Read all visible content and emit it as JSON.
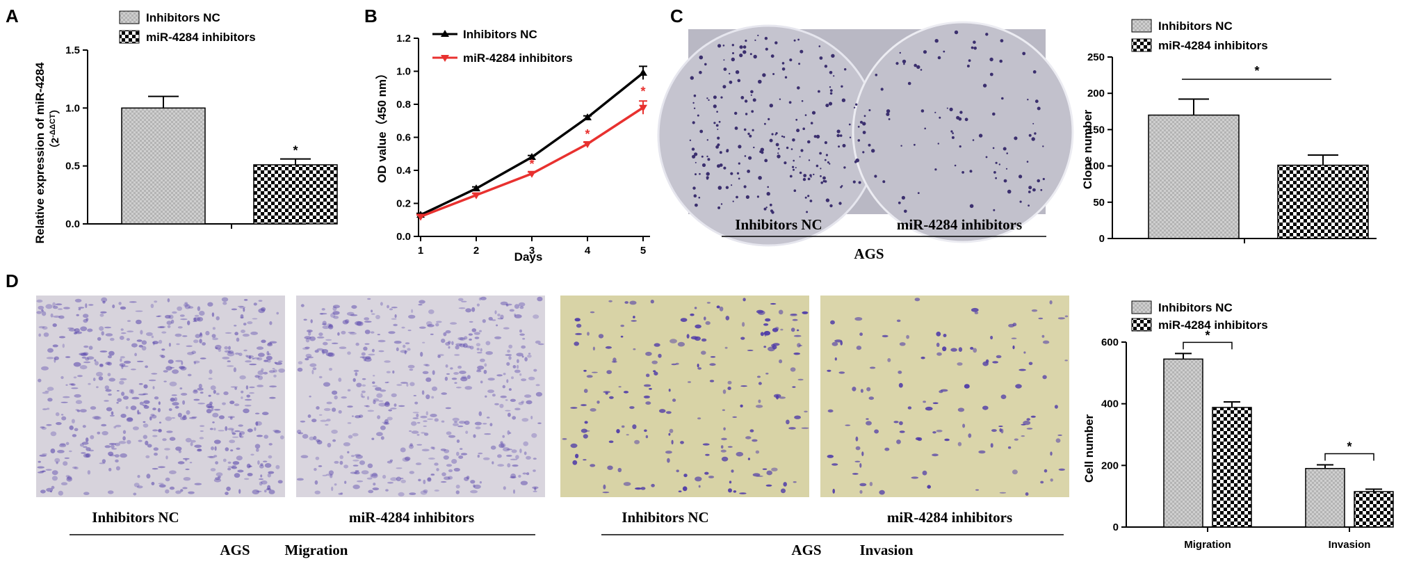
{
  "panels": {
    "A": "A",
    "B": "B",
    "C": "C",
    "D": "D"
  },
  "colors": {
    "axis": "#000000",
    "nc_fill": "#c8c8c8",
    "line_nc": "#000000",
    "line_inhib": "#e8312f",
    "dish_bg": "#b8b7c4",
    "colony": "#3b2f6e",
    "migration_bg": "#d7d3dc",
    "invasion_bg": "#d9d3a8",
    "stain": "#4e3aa8"
  },
  "images": {
    "colony": {
      "label_nc": "Inhibitors NC",
      "label_inhib": "miR-4284 inhibitors",
      "group": "AGS"
    },
    "migration": {
      "label_nc": "Inhibitors NC",
      "label_inhib": "miR-4284 inhibitors",
      "group": "AGS",
      "assay": "Migration"
    },
    "invasion": {
      "label_nc": "Inhibitors NC",
      "label_inhib": "miR-4284 inhibitors",
      "group": "AGS",
      "assay": "Invasion"
    }
  },
  "chart_data": [
    {
      "panel": "A",
      "type": "bar",
      "categories": [
        "Inhibitors NC",
        "miR-4284 inhibitors"
      ],
      "values": [
        1.0,
        0.51
      ],
      "errors": [
        0.1,
        0.05
      ],
      "significance": [
        "",
        "*"
      ],
      "legend": [
        "Inhibitors NC",
        "miR-4284 inhibitors"
      ],
      "legend_position": "top",
      "ylabel": "Relative expression of miR-4284",
      "ylabel_sub": "（2",
      "ylabel_sup": "-ΔΔCT",
      "ylabel_end": "）",
      "ylim": [
        0,
        1.5
      ],
      "yticks": [
        "0.0",
        "0.5",
        "1.0",
        "1.5"
      ]
    },
    {
      "panel": "B",
      "type": "line",
      "x": [
        1,
        2,
        3,
        4,
        5
      ],
      "xticks": [
        "1",
        "2",
        "3",
        "4",
        "5"
      ],
      "series": [
        {
          "name": "Inhibitors NC",
          "values": [
            0.13,
            0.29,
            0.48,
            0.72,
            0.99
          ],
          "errors": [
            0.01,
            0.01,
            0.01,
            0.01,
            0.04
          ]
        },
        {
          "name": "miR-4284 inhibitors",
          "values": [
            0.12,
            0.25,
            0.38,
            0.56,
            0.78
          ],
          "errors": [
            0.01,
            0.01,
            0.01,
            0.01,
            0.04
          ]
        }
      ],
      "significance_x": [
        3,
        4,
        5
      ],
      "star": "*",
      "xlabel": "Days",
      "ylabel": "OD value（450 nm）",
      "ylim": [
        0,
        1.2
      ],
      "yticks": [
        "0.0",
        "0.2",
        "0.4",
        "0.6",
        "0.8",
        "1.0",
        "1.2"
      ],
      "legend_position": "top-left"
    },
    {
      "panel": "C",
      "type": "bar",
      "categories": [
        "Inhibitors NC",
        "miR-4284 inhibitors"
      ],
      "values": [
        170,
        101
      ],
      "errors": [
        22,
        14
      ],
      "significance": "*",
      "legend": [
        "Inhibitors NC",
        "miR-4284 inhibitors"
      ],
      "legend_position": "top",
      "ylabel": "Clone number",
      "ylim": [
        0,
        250
      ],
      "yticks": [
        "0",
        "50",
        "100",
        "150",
        "200",
        "250"
      ]
    },
    {
      "panel": "D",
      "type": "bar",
      "categories": [
        "Migration",
        "Invasion"
      ],
      "series": [
        {
          "name": "Inhibitors NC",
          "values": [
            545,
            190
          ],
          "errors": [
            18,
            12
          ]
        },
        {
          "name": "miR-4284 inhibitors",
          "values": [
            388,
            115
          ],
          "errors": [
            18,
            8
          ]
        }
      ],
      "significance": [
        "*",
        "*"
      ],
      "legend_position": "top",
      "ylabel": "Cell number",
      "ylim": [
        0,
        600
      ],
      "yticks": [
        "0",
        "200",
        "400",
        "600"
      ]
    }
  ]
}
